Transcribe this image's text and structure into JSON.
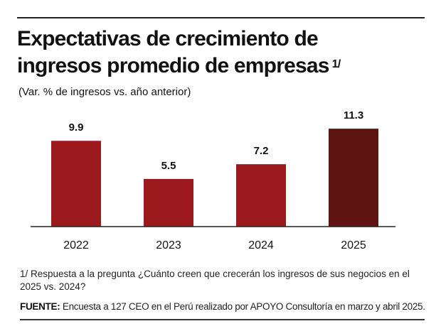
{
  "header": {
    "title_line1": "Expectativas de crecimiento de",
    "title_line2": "ingresos promedio de empresas",
    "title_note_marker": "1/",
    "subtitle": "(Var. % de ingresos vs. año anterior)"
  },
  "footer": {
    "note": "1/ Respuesta a la pregunta ¿Cuánto creen que crecerán los ingresos de sus negocios en el 2025 vs. 2024?",
    "source_label": "FUENTE:",
    "source_text": "Encuesta a 127 CEO en el Perú realizado por APOYO Consultoría en marzo y abril 2025."
  },
  "colors": {
    "bar_default": "#9c1a1e",
    "bar_highlight": "#5e1411",
    "axis": "#222222"
  },
  "chart_data": {
    "type": "bar",
    "title": "Expectativas de crecimiento de ingresos promedio de empresas 1/",
    "subtitle": "(Var. % de ingresos vs. año anterior)",
    "xlabel": "",
    "ylabel": "",
    "categories": [
      "2022",
      "2023",
      "2024",
      "2025"
    ],
    "values": [
      9.9,
      5.5,
      7.2,
      11.3
    ],
    "data_labels": [
      "9.9",
      "5.5",
      "7.2",
      "11.3"
    ],
    "highlight_index": 3,
    "ylim": [
      0,
      12
    ],
    "grid": false,
    "legend": "none"
  }
}
